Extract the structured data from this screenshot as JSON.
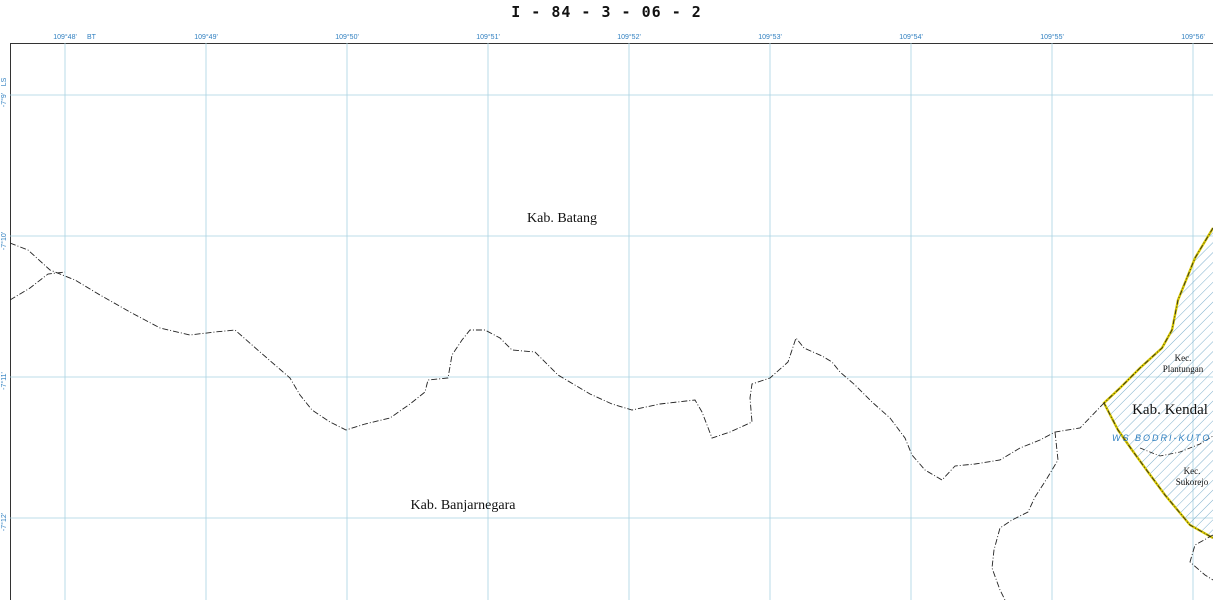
{
  "sheet": {
    "title": "I - 84 - 3 - 06 - 2"
  },
  "graticule": {
    "longitudes": [
      "109°48'",
      "109°49'",
      "109°50'",
      "109°51'",
      "109°52'",
      "109°53'",
      "109°54'",
      "109°55'",
      "109°56'"
    ],
    "longitude_suffix": "BT",
    "latitudes": [
      "-7°9'",
      "-7°10'",
      "-7°11'",
      "-7°12'"
    ],
    "latitude_suffix": "LS",
    "grid_color": "#a9d2e2"
  },
  "regions": {
    "batang": "Kab. Batang",
    "banjarnegara": "Kab. Banjarnegara",
    "kendal": "Kab. Kendal",
    "kec_plantungan_line1": "Kec.",
    "kec_plantungan_line2": "Plantungan",
    "kec_sukorejo_line1": "Kec.",
    "kec_sukorejo_line2": "Sukorejo",
    "ws": "WS BODRI-KUTO"
  },
  "colors": {
    "boundary": "#222222",
    "kendal_border": "#d4c400",
    "hatch": "#7fb0cc",
    "label_blue": "#2f7fc0"
  }
}
